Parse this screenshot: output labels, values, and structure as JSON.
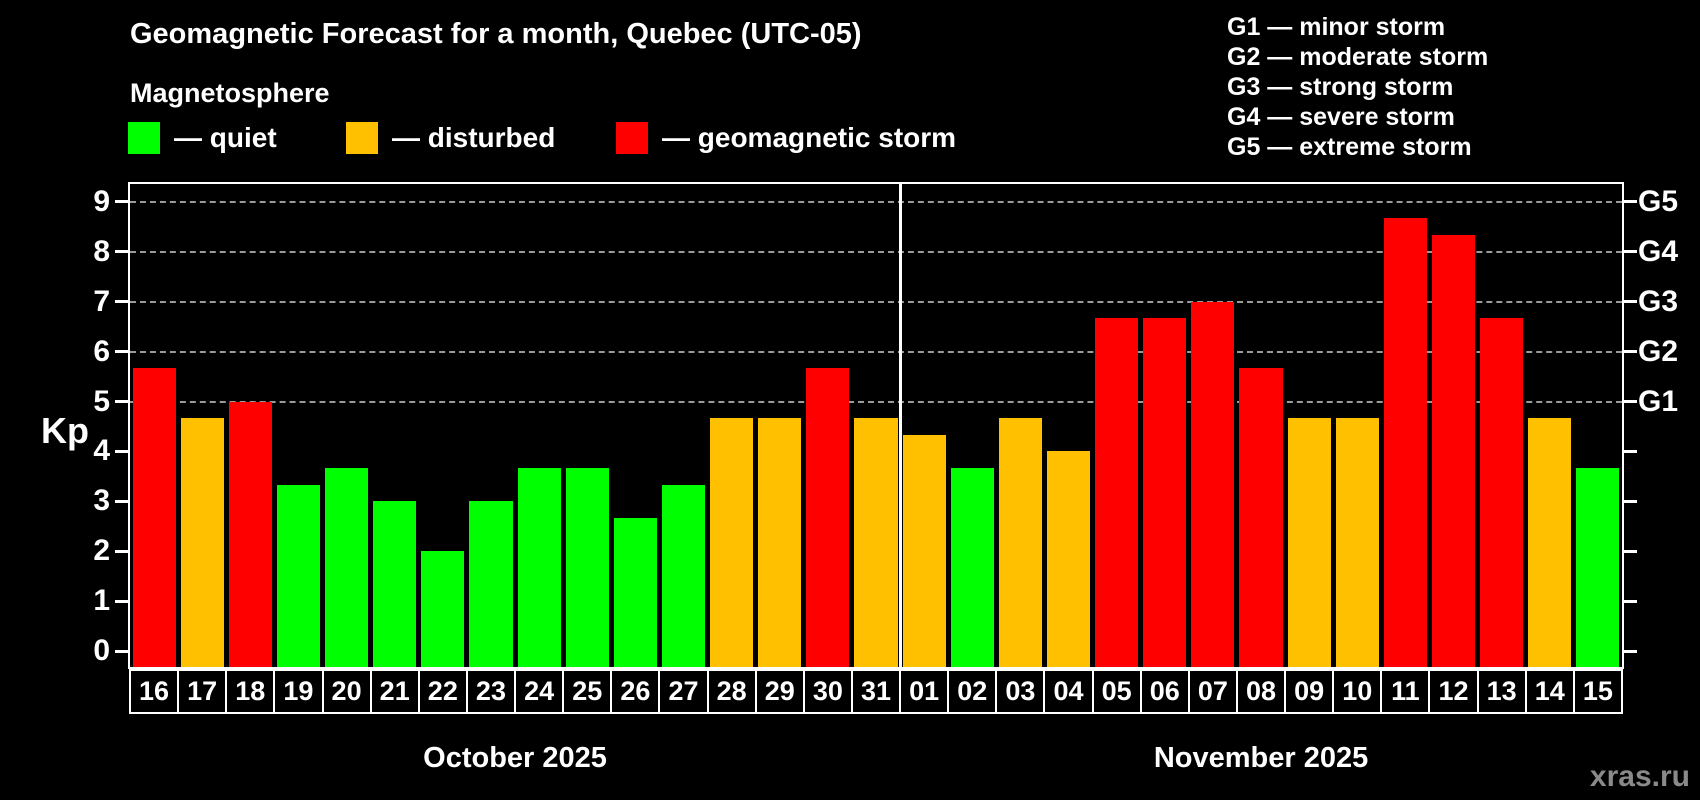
{
  "title": "Geomagnetic Forecast for a month, Quebec (UTC-05)",
  "subtitle": "Magnetosphere",
  "legend": {
    "quiet": "— quiet",
    "disturbed": "— disturbed",
    "storm": "— geomagnetic storm"
  },
  "g_legend": [
    "G1 — minor storm",
    "G2 — moderate storm",
    "G3 — strong storm",
    "G4 — severe storm",
    "G5 — extreme storm"
  ],
  "watermark": "xras.ru",
  "colors": {
    "quiet": "#00ff00",
    "disturbed": "#ffc000",
    "storm": "#ff0000",
    "grid": "#9a9a9a",
    "axis": "#ffffff",
    "background": "#000000"
  },
  "chart_data": {
    "type": "bar",
    "title": "Geomagnetic Forecast for a month, Quebec (UTC-05)",
    "ylabel": "Kp",
    "ylim": [
      0,
      9
    ],
    "y_ticks": [
      0,
      1,
      2,
      3,
      4,
      5,
      6,
      7,
      8,
      9
    ],
    "right_axis_labels": [
      {
        "text": "G1",
        "value": 5
      },
      {
        "text": "G2",
        "value": 6
      },
      {
        "text": "G3",
        "value": 7
      },
      {
        "text": "G4",
        "value": 8
      },
      {
        "text": "G5",
        "value": 9
      }
    ],
    "gridline_values": [
      5,
      6,
      7,
      8,
      9
    ],
    "legend_position": "top-left",
    "grid": "dashed horizontal at storm levels only",
    "months": [
      {
        "label": "October 2025",
        "days": [
          {
            "date": "16",
            "kp": 5.67,
            "status": "storm"
          },
          {
            "date": "17",
            "kp": 4.67,
            "status": "disturbed"
          },
          {
            "date": "18",
            "kp": 5.0,
            "status": "storm"
          },
          {
            "date": "19",
            "kp": 3.33,
            "status": "quiet"
          },
          {
            "date": "20",
            "kp": 3.67,
            "status": "quiet"
          },
          {
            "date": "21",
            "kp": 3.0,
            "status": "quiet"
          },
          {
            "date": "22",
            "kp": 2.0,
            "status": "quiet"
          },
          {
            "date": "23",
            "kp": 3.0,
            "status": "quiet"
          },
          {
            "date": "24",
            "kp": 3.67,
            "status": "quiet"
          },
          {
            "date": "25",
            "kp": 3.67,
            "status": "quiet"
          },
          {
            "date": "26",
            "kp": 2.67,
            "status": "quiet"
          },
          {
            "date": "27",
            "kp": 3.33,
            "status": "quiet"
          },
          {
            "date": "28",
            "kp": 4.67,
            "status": "disturbed"
          },
          {
            "date": "29",
            "kp": 4.67,
            "status": "disturbed"
          },
          {
            "date": "30",
            "kp": 5.67,
            "status": "storm"
          },
          {
            "date": "31",
            "kp": 4.67,
            "status": "disturbed"
          }
        ]
      },
      {
        "label": "November 2025",
        "days": [
          {
            "date": "01",
            "kp": 4.33,
            "status": "disturbed"
          },
          {
            "date": "02",
            "kp": 3.67,
            "status": "quiet"
          },
          {
            "date": "03",
            "kp": 4.67,
            "status": "disturbed"
          },
          {
            "date": "04",
            "kp": 4.0,
            "status": "disturbed"
          },
          {
            "date": "05",
            "kp": 6.67,
            "status": "storm"
          },
          {
            "date": "06",
            "kp": 6.67,
            "status": "storm"
          },
          {
            "date": "07",
            "kp": 7.0,
            "status": "storm"
          },
          {
            "date": "08",
            "kp": 5.67,
            "status": "storm"
          },
          {
            "date": "09",
            "kp": 4.67,
            "status": "disturbed"
          },
          {
            "date": "10",
            "kp": 4.67,
            "status": "disturbed"
          },
          {
            "date": "11",
            "kp": 8.67,
            "status": "storm"
          },
          {
            "date": "12",
            "kp": 8.33,
            "status": "storm"
          },
          {
            "date": "13",
            "kp": 6.67,
            "status": "storm"
          },
          {
            "date": "14",
            "kp": 4.67,
            "status": "disturbed"
          },
          {
            "date": "15",
            "kp": 3.67,
            "status": "quiet"
          }
        ]
      }
    ]
  }
}
